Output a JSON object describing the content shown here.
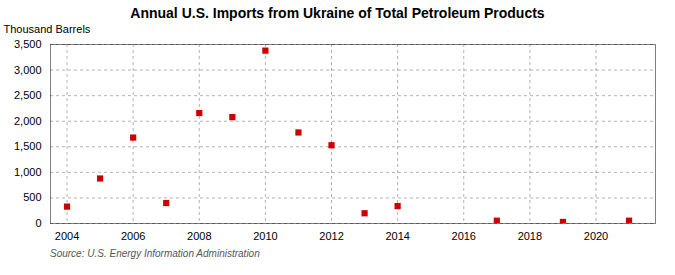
{
  "chart_data": {
    "type": "scatter",
    "title": "Annual U.S. Imports from Ukraine of Total Petroleum Products",
    "ylabel": "Thousand Barrels",
    "source": "Source: U.S. Energy Information Administration",
    "x": [
      2004,
      2005,
      2006,
      2007,
      2008,
      2009,
      2010,
      2011,
      2012,
      2013,
      2014,
      2017,
      2019,
      2021
    ],
    "values": [
      330,
      880,
      1680,
      400,
      2160,
      2080,
      3380,
      1780,
      1530,
      200,
      340,
      55,
      30,
      55
    ],
    "color": "#cc0000",
    "marker": "square",
    "xlim": [
      2003.5,
      2021.8
    ],
    "xticks": [
      2004,
      2006,
      2008,
      2010,
      2012,
      2014,
      2016,
      2018,
      2020
    ],
    "ylim": [
      0,
      3500
    ],
    "yticks": [
      0,
      500,
      {
        "value": 1000,
        "label": "1,000"
      },
      {
        "value": 1500,
        "label": "1,500"
      },
      {
        "value": 2000,
        "label": "2,000"
      },
      {
        "value": 2500,
        "label": "2,500"
      },
      {
        "value": 3000,
        "label": "3,000"
      },
      {
        "value": 3500,
        "label": "3,500"
      }
    ],
    "grid": true
  }
}
